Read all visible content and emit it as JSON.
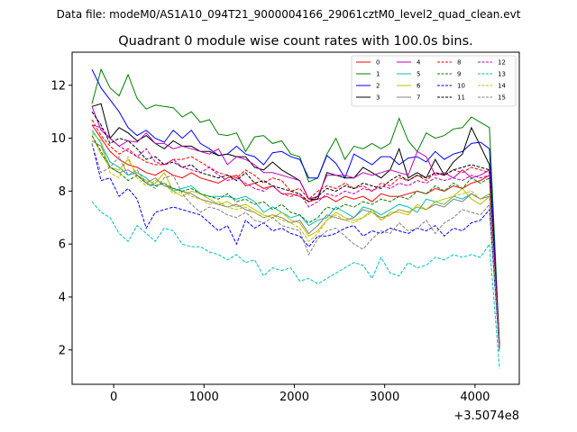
{
  "header": {
    "data_file": "Data file: modeM0/AS1A10_094T21_9000004166_29061cztM0_level2_quad_clean.evt"
  },
  "chart_data": {
    "type": "line",
    "title": "Quadrant 0 module wise count rates with 100.0s bins.",
    "xlabel": "",
    "ylabel": "",
    "x_offset_label": "+3.5074e8",
    "xlim": [
      -460,
      4490
    ],
    "ylim": [
      0.7,
      13.25
    ],
    "x_ticks": [
      0,
      1000,
      2000,
      3000,
      4000
    ],
    "x_tick_labels": [
      "0",
      "1000",
      "2000",
      "3000",
      "4000"
    ],
    "y_ticks": [
      2,
      4,
      6,
      8,
      10,
      12
    ],
    "y_tick_labels": [
      "2",
      "4",
      "6",
      "8",
      "10",
      "12"
    ],
    "legend_position": "top-right",
    "x": [
      -240,
      -140,
      -40,
      60,
      160,
      260,
      360,
      460,
      560,
      660,
      760,
      860,
      960,
      1060,
      1160,
      1260,
      1360,
      1460,
      1560,
      1660,
      1760,
      1860,
      1960,
      2060,
      2160,
      2260,
      2360,
      2460,
      2560,
      2660,
      2760,
      2860,
      2960,
      3060,
      3160,
      3260,
      3360,
      3460,
      3560,
      3660,
      3760,
      3860,
      3960,
      4060,
      4160,
      4270
    ],
    "series": [
      {
        "name": "0",
        "color": "#ff0000",
        "dash": "solid",
        "values": [
          10.5,
          10.0,
          9.5,
          9.2,
          9.0,
          8.9,
          8.7,
          8.6,
          8.8,
          8.6,
          8.5,
          8.7,
          8.5,
          8.4,
          8.3,
          8.5,
          8.6,
          8.2,
          8.3,
          8.1,
          8.2,
          7.9,
          7.9,
          7.8,
          7.6,
          7.7,
          7.8,
          7.6,
          7.8,
          7.7,
          7.8,
          7.6,
          7.9,
          7.8,
          7.8,
          7.9,
          8.0,
          7.9,
          8.1,
          8.0,
          8.2,
          8.1,
          8.3,
          8.4,
          8.6,
          2.0
        ]
      },
      {
        "name": "1",
        "color": "#008000",
        "dash": "solid",
        "values": [
          11.3,
          12.6,
          11.9,
          11.6,
          12.4,
          11.5,
          11.1,
          11.25,
          11.2,
          11.15,
          10.8,
          11.0,
          10.6,
          10.7,
          10.15,
          10.1,
          10.2,
          9.5,
          10.05,
          10.1,
          9.8,
          9.9,
          9.4,
          9.3,
          8.35,
          8.5,
          9.4,
          10.0,
          9.2,
          9.7,
          9.6,
          9.8,
          9.6,
          9.8,
          10.75,
          9.9,
          9.5,
          10.2,
          10.0,
          10.1,
          10.35,
          10.4,
          10.8,
          10.6,
          10.4,
          2.2
        ]
      },
      {
        "name": "2",
        "color": "#0000ff",
        "dash": "solid",
        "values": [
          12.6,
          11.9,
          11.45,
          11.0,
          10.4,
          10.1,
          10.3,
          10.0,
          9.85,
          10.3,
          10.0,
          10.3,
          9.8,
          9.6,
          9.35,
          9.4,
          9.7,
          9.4,
          9.3,
          9.0,
          9.45,
          9.5,
          9.3,
          9.2,
          8.5,
          8.5,
          9.35,
          9.05,
          8.5,
          9.4,
          9.2,
          9.0,
          9.3,
          9.3,
          9.0,
          9.25,
          9.3,
          9.1,
          9.5,
          9.2,
          9.4,
          9.5,
          9.8,
          9.85,
          9.6,
          2.2
        ]
      },
      {
        "name": "3",
        "color": "#000000",
        "dash": "solid",
        "values": [
          11.2,
          11.3,
          10.0,
          10.4,
          10.2,
          9.9,
          10.1,
          9.8,
          9.6,
          9.9,
          9.7,
          9.7,
          9.5,
          9.5,
          9.35,
          9.4,
          9.3,
          9.3,
          8.9,
          8.8,
          9.1,
          8.8,
          8.6,
          8.4,
          7.7,
          7.7,
          8.7,
          8.6,
          8.5,
          8.5,
          8.9,
          8.7,
          8.5,
          8.8,
          9.6,
          8.5,
          8.7,
          8.5,
          9.2,
          8.6,
          9.1,
          9.4,
          10.4,
          9.7,
          9.0,
          2.0
        ]
      },
      {
        "name": "4",
        "color": "#bf00bf",
        "dash": "solid",
        "values": [
          11.2,
          10.3,
          10.0,
          9.7,
          9.9,
          9.85,
          10.2,
          9.8,
          9.8,
          9.6,
          9.7,
          9.6,
          9.5,
          9.4,
          9.6,
          9.0,
          9.3,
          9.2,
          9.0,
          8.7,
          8.7,
          8.6,
          8.5,
          8.4,
          7.7,
          7.8,
          8.6,
          8.6,
          8.6,
          8.5,
          8.7,
          8.6,
          8.7,
          8.8,
          8.7,
          8.6,
          9.5,
          9.3,
          8.6,
          8.7,
          8.5,
          8.8,
          8.5,
          8.6,
          8.8,
          2.1
        ]
      },
      {
        "name": "5",
        "color": "#00bfbf",
        "dash": "solid",
        "values": [
          10.3,
          9.8,
          9.1,
          8.9,
          8.6,
          8.7,
          8.5,
          8.2,
          8.3,
          8.0,
          8.1,
          8.2,
          7.9,
          7.8,
          7.8,
          7.8,
          7.7,
          7.8,
          7.6,
          7.2,
          7.4,
          7.2,
          7.0,
          7.1,
          6.7,
          6.9,
          7.0,
          7.4,
          7.2,
          7.0,
          7.4,
          7.3,
          7.1,
          7.3,
          7.5,
          7.4,
          7.2,
          7.7,
          7.6,
          7.5,
          7.8,
          7.7,
          7.9,
          7.7,
          7.9,
          2.0
        ]
      },
      {
        "name": "6",
        "color": "#bfbf00",
        "dash": "solid",
        "values": [
          10.1,
          9.4,
          8.9,
          8.8,
          9.2,
          8.6,
          8.4,
          8.3,
          8.7,
          8.0,
          7.8,
          8.0,
          7.9,
          7.7,
          7.5,
          7.6,
          7.4,
          7.5,
          7.3,
          7.1,
          7.0,
          7.2,
          6.9,
          6.8,
          6.3,
          6.5,
          6.9,
          7.2,
          7.0,
          6.9,
          7.0,
          7.3,
          6.9,
          7.2,
          7.2,
          7.1,
          7.5,
          7.3,
          7.6,
          7.7,
          7.8,
          8.1,
          7.7,
          7.5,
          7.8,
          2.0
        ]
      },
      {
        "name": "7",
        "color": "#808080",
        "dash": "solid",
        "values": [
          9.9,
          9.7,
          8.9,
          8.7,
          8.8,
          8.6,
          8.3,
          8.5,
          8.2,
          8.1,
          8.0,
          7.9,
          7.7,
          7.6,
          7.5,
          7.4,
          7.5,
          7.3,
          7.2,
          7.0,
          7.1,
          7.0,
          6.8,
          6.9,
          6.4,
          6.7,
          7.1,
          7.0,
          6.9,
          7.0,
          7.3,
          7.2,
          7.0,
          7.1,
          7.3,
          7.2,
          7.4,
          7.3,
          7.5,
          7.4,
          7.7,
          7.6,
          7.9,
          7.7,
          7.8,
          2.0
        ]
      },
      {
        "name": "8",
        "color": "#ff0000",
        "dash": "dashed",
        "values": [
          10.7,
          10.1,
          9.7,
          9.4,
          9.6,
          9.3,
          9.1,
          9.0,
          9.0,
          9.2,
          9.2,
          9.3,
          9.1,
          8.9,
          8.7,
          8.6,
          8.5,
          8.8,
          8.6,
          8.3,
          8.5,
          8.4,
          8.0,
          8.1,
          7.7,
          8.0,
          8.2,
          8.1,
          8.3,
          8.1,
          8.2,
          8.0,
          8.3,
          8.2,
          8.5,
          8.4,
          8.6,
          8.4,
          8.7,
          8.6,
          8.8,
          8.7,
          8.9,
          8.8,
          8.7,
          2.0
        ]
      },
      {
        "name": "9",
        "color": "#008000",
        "dash": "dashed",
        "values": [
          10.1,
          9.5,
          8.9,
          8.7,
          8.4,
          8.6,
          8.3,
          8.2,
          8.3,
          8.1,
          8.0,
          8.1,
          7.9,
          7.8,
          7.7,
          7.9,
          7.6,
          7.7,
          7.5,
          7.6,
          7.3,
          7.5,
          7.2,
          7.1,
          6.8,
          7.0,
          7.4,
          7.3,
          7.5,
          7.4,
          7.6,
          7.5,
          7.7,
          7.6,
          7.8,
          7.7,
          8.0,
          7.9,
          8.2,
          8.0,
          8.3,
          8.1,
          8.5,
          8.3,
          8.5,
          2.0
        ]
      },
      {
        "name": "10",
        "color": "#0000ff",
        "dash": "dashed",
        "values": [
          9.8,
          8.4,
          8.5,
          7.8,
          8.1,
          7.7,
          6.6,
          7.2,
          7.3,
          7.4,
          7.3,
          7.2,
          7.1,
          6.8,
          6.5,
          6.7,
          6.0,
          6.9,
          6.6,
          6.8,
          6.5,
          6.6,
          6.4,
          6.3,
          5.9,
          6.3,
          6.3,
          6.4,
          6.6,
          6.7,
          6.3,
          6.5,
          6.4,
          6.6,
          6.5,
          6.4,
          6.6,
          6.5,
          6.7,
          6.3,
          6.6,
          6.5,
          6.8,
          6.9,
          7.3,
          2.0
        ]
      },
      {
        "name": "11",
        "color": "#000000",
        "dash": "dashed",
        "values": [
          11.0,
          10.5,
          9.8,
          10.0,
          9.9,
          9.6,
          9.2,
          9.3,
          9.0,
          9.1,
          8.9,
          9.0,
          8.7,
          8.6,
          8.5,
          8.6,
          8.4,
          8.7,
          8.3,
          8.4,
          8.2,
          8.1,
          8.0,
          7.9,
          7.6,
          7.8,
          8.1,
          8.0,
          8.2,
          8.1,
          8.3,
          8.2,
          8.1,
          8.4,
          8.6,
          8.4,
          8.6,
          8.5,
          8.7,
          8.6,
          8.8,
          8.9,
          9.0,
          8.9,
          8.8,
          2.1
        ]
      },
      {
        "name": "12",
        "color": "#bf00bf",
        "dash": "dashed",
        "values": [
          10.5,
          10.4,
          10.0,
          9.7,
          9.5,
          9.3,
          9.6,
          9.1,
          9.0,
          9.2,
          8.9,
          8.8,
          8.7,
          8.9,
          8.6,
          8.4,
          8.5,
          8.3,
          8.1,
          8.0,
          8.2,
          7.9,
          7.8,
          7.9,
          7.4,
          7.6,
          7.9,
          7.8,
          8.0,
          7.9,
          8.1,
          8.0,
          8.2,
          8.1,
          8.3,
          8.2,
          8.4,
          8.3,
          8.5,
          8.4,
          8.5,
          8.4,
          8.6,
          8.5,
          8.6,
          2.0
        ]
      },
      {
        "name": "13",
        "color": "#00bfbf",
        "dash": "dashed",
        "values": [
          7.6,
          7.2,
          7.0,
          6.4,
          6.1,
          6.7,
          6.4,
          6.1,
          6.6,
          6.5,
          6.0,
          5.9,
          5.9,
          5.7,
          5.6,
          5.4,
          5.6,
          5.3,
          5.4,
          4.8,
          5.1,
          5.0,
          5.1,
          4.6,
          4.7,
          4.5,
          4.7,
          4.9,
          5.1,
          5.3,
          5.2,
          4.7,
          5.5,
          4.9,
          4.8,
          5.3,
          5.1,
          5.2,
          5.5,
          5.4,
          5.6,
          5.5,
          5.6,
          5.5,
          6.0,
          1.3
        ]
      },
      {
        "name": "14",
        "color": "#bfbf00",
        "dash": "dashed",
        "values": [
          10.2,
          9.9,
          8.7,
          8.5,
          9.3,
          8.5,
          8.2,
          8.4,
          8.3,
          7.9,
          8.0,
          7.8,
          7.7,
          7.5,
          7.6,
          7.4,
          7.3,
          7.4,
          7.2,
          7.0,
          7.1,
          6.9,
          6.8,
          6.6,
          6.1,
          6.4,
          6.9,
          7.1,
          6.9,
          6.8,
          7.0,
          7.2,
          6.9,
          7.1,
          7.3,
          7.2,
          7.4,
          7.3,
          7.6,
          7.5,
          7.8,
          7.9,
          8.0,
          7.7,
          7.9,
          2.0
        ]
      },
      {
        "name": "15",
        "color": "#808080",
        "dash": "dashed",
        "values": [
          9.8,
          8.7,
          8.9,
          9.3,
          8.6,
          8.8,
          8.3,
          8.1,
          8.5,
          8.6,
          7.9,
          7.5,
          7.2,
          7.4,
          7.3,
          7.1,
          7.0,
          7.2,
          6.9,
          6.8,
          7.0,
          6.7,
          6.6,
          6.5,
          5.6,
          6.2,
          6.5,
          6.6,
          6.3,
          6.0,
          5.8,
          6.2,
          6.5,
          6.4,
          6.8,
          6.5,
          6.6,
          6.9,
          6.4,
          6.8,
          7.0,
          7.3,
          7.2,
          7.1,
          7.5,
          1.9
        ]
      }
    ]
  }
}
